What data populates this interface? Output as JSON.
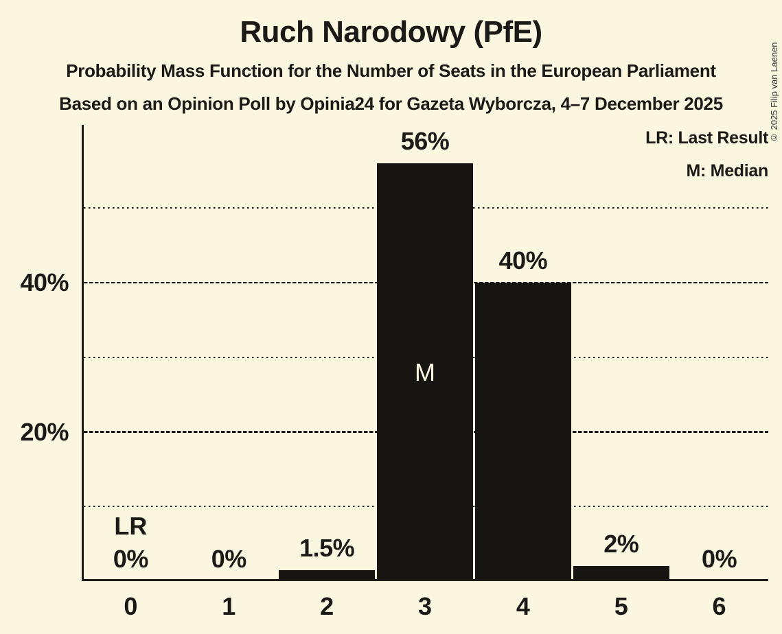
{
  "header": {
    "title": "Ruch Narodowy (PfE)",
    "subtitle1": "Probability Mass Function for the Number of Seats in the European Parliament",
    "subtitle2": "Based on an Opinion Poll by Opinia24 for Gazeta Wyborcza, 4–7 December 2025"
  },
  "legend": {
    "last_result": "LR: Last Result",
    "median": "M: Median"
  },
  "copyright": "© 2025 Filip van Laenen",
  "colors": {
    "background": "#fbf6df",
    "bar": "#161512",
    "text": "#1b1a16",
    "median_text": "#fbf6df"
  },
  "chart_data": {
    "type": "bar",
    "title": "Ruch Narodowy (PfE)",
    "categories": [
      "0",
      "1",
      "2",
      "3",
      "4",
      "5",
      "6"
    ],
    "values": [
      0,
      0,
      1.5,
      56,
      40,
      2,
      0
    ],
    "bar_labels": [
      "0%",
      "0%",
      "1.5%",
      "56%",
      "40%",
      "2%",
      "0%"
    ],
    "xlabel": "",
    "ylabel": "",
    "ylim": [
      0,
      61
    ],
    "y_axis": {
      "ticks": [
        {
          "value": 20,
          "label": "20%"
        },
        {
          "value": 40,
          "label": "40%"
        }
      ],
      "dashed_gridlines": [
        20,
        40
      ],
      "dotted_gridlines": [
        10,
        30,
        50
      ]
    },
    "annotations": {
      "last_result_category": "0",
      "last_result_text": "LR",
      "median_category": "3",
      "median_text": "M"
    },
    "legend_position": "top-right",
    "grid": "horizontal"
  }
}
